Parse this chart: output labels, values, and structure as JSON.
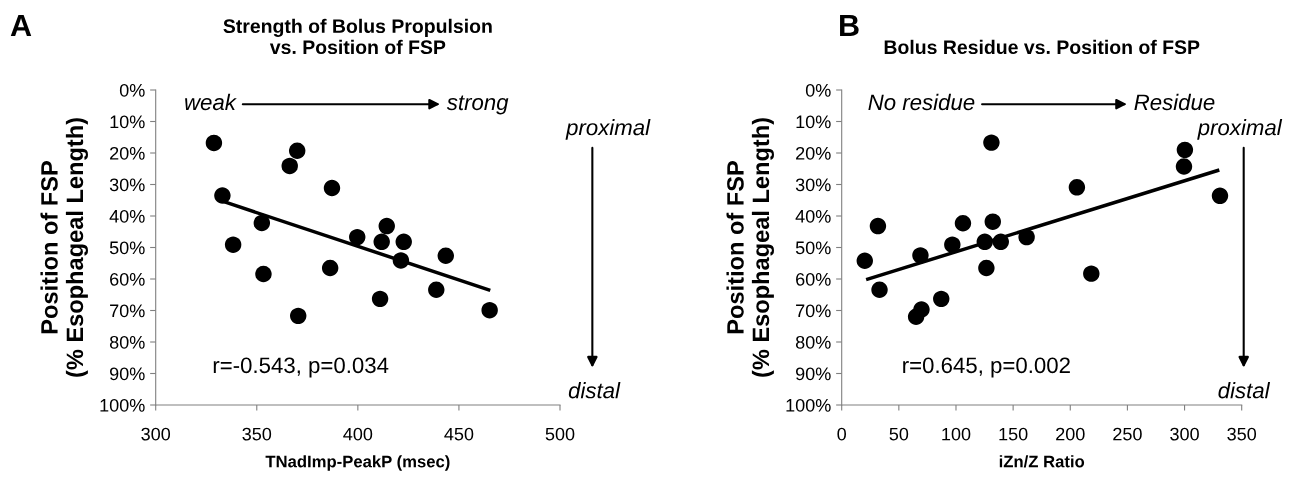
{
  "chart_data": [
    {
      "type": "scatter",
      "title": "Strength of Bolus Propulsion\nvs. Position of FSP",
      "xlabel": "TNadImp-PeakP (msec)",
      "ylabel": "Position of FSP\n(% Esophageal Length)",
      "annotations": [
        "A",
        "weak",
        "strong",
        "proximal",
        "distal",
        "r=-0.543, p=0.034"
      ],
      "xlim": [
        300,
        500
      ],
      "xticks": [
        300,
        350,
        400,
        450,
        500
      ],
      "ylim": [
        100,
        0
      ],
      "yticks": [
        {
          "value": 0,
          "label": "0%"
        },
        {
          "value": 10,
          "label": "10%"
        },
        {
          "value": 20,
          "label": "20%"
        },
        {
          "value": 30,
          "label": "30%"
        },
        {
          "value": 40,
          "label": "40%"
        },
        {
          "value": 50,
          "label": "50%"
        },
        {
          "value": 60,
          "label": "60%"
        },
        {
          "value": 70,
          "label": "70%"
        },
        {
          "value": 80,
          "label": "80%"
        },
        {
          "value": 90,
          "label": "90%"
        },
        {
          "value": 100,
          "label": "100%"
        }
      ],
      "grid": false,
      "legend": false,
      "marker": "circle",
      "series": [
        {
          "color": "#000000",
          "x": [
            328.8,
            370,
            366.3,
            387.2,
            333,
            352.5,
            399.7,
            414.3,
            411.8,
            422.7,
            421.3,
            443.5,
            338.3,
            353.3,
            386.3,
            411,
            438.8,
            370.5,
            465.2
          ],
          "values": [
            16.8,
            19.3,
            24.1,
            31.1,
            33.5,
            42.2,
            46.7,
            43.2,
            48.2,
            48.2,
            54.1,
            52.6,
            49.1,
            58.4,
            56.5,
            66.3,
            63.4,
            71.7,
            69.9
          ]
        },
        {
          "type": "line",
          "color": "#000000",
          "x": [
            333,
            465.5
          ],
          "values": [
            35.3,
            63.6
          ],
          "marker": "none",
          "line_style": "solid"
        }
      ]
    },
    {
      "type": "scatter",
      "title": "Bolus Residue vs. Position of FSP",
      "xlabel": "iZn/Z Ratio",
      "ylabel": "Position of FSP\n(% Esophageal Length)",
      "annotations": [
        "B",
        "No residue",
        "Residue",
        "proximal",
        "distal",
        "r=0.645, p=0.002"
      ],
      "xlim": [
        0,
        350
      ],
      "xticks": [
        0,
        50,
        100,
        150,
        200,
        250,
        300,
        350
      ],
      "ylim": [
        100,
        0
      ],
      "yticks": [
        {
          "value": 0,
          "label": "0%"
        },
        {
          "value": 10,
          "label": "10%"
        },
        {
          "value": 20,
          "label": "20%"
        },
        {
          "value": 30,
          "label": "30%"
        },
        {
          "value": 40,
          "label": "40%"
        },
        {
          "value": 50,
          "label": "50%"
        },
        {
          "value": 60,
          "label": "60%"
        },
        {
          "value": 70,
          "label": "70%"
        },
        {
          "value": 80,
          "label": "80%"
        },
        {
          "value": 90,
          "label": "90%"
        },
        {
          "value": 100,
          "label": "100%"
        }
      ],
      "grid": false,
      "legend": false,
      "marker": "circle",
      "series": [
        {
          "color": "#000000",
          "x": [
            131,
            205.8,
            31.7,
            106.1,
            132.2,
            20.2,
            68.9,
            96.8,
            125.2,
            139.2,
            161.8,
            126.6,
            218.4,
            33.1,
            87.1,
            69.8,
            65.1,
            300.3,
            299.5,
            331
          ],
          "values": [
            16.7,
            30.9,
            43.2,
            42.3,
            41.8,
            54.2,
            52.5,
            49.1,
            48.2,
            48.2,
            46.7,
            56.5,
            58.3,
            63.4,
            66.3,
            69.7,
            72,
            19,
            24.3,
            33.6
          ]
        },
        {
          "type": "line",
          "color": "#000000",
          "x": [
            21.4,
            330.4
          ],
          "values": [
            60.2,
            25.4
          ],
          "marker": "none",
          "line_style": "solid"
        }
      ]
    }
  ]
}
